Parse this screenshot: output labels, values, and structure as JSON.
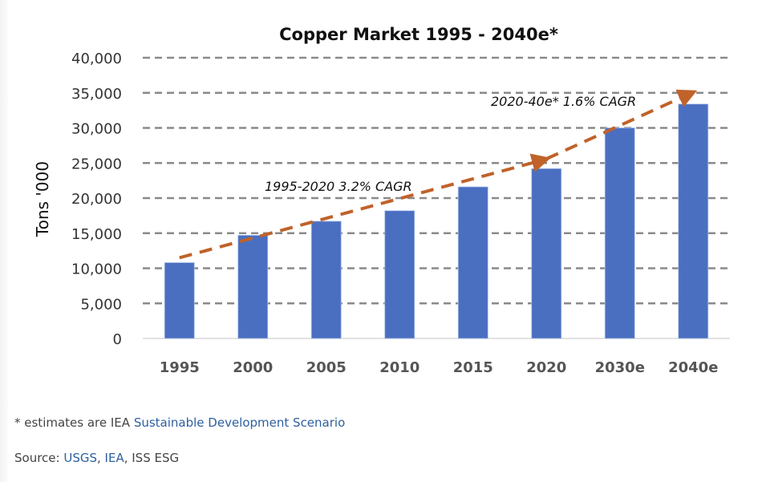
{
  "chart_data": {
    "type": "bar",
    "title": "Copper Market 1995 - 2040e*",
    "xlabel": "",
    "ylabel": "Tons '000",
    "ylim": [
      0,
      40000
    ],
    "yticks": [
      0,
      5000,
      10000,
      15000,
      20000,
      25000,
      30000,
      35000,
      40000
    ],
    "ytick_labels": [
      "0",
      "5,000",
      "10,000",
      "15,000",
      "20,000",
      "25,000",
      "30,000",
      "35,000",
      "40,000"
    ],
    "grid": true,
    "categories": [
      "1995",
      "2000",
      "2005",
      "2010",
      "2015",
      "2020",
      "2030e",
      "2040e"
    ],
    "values": [
      10800,
      14700,
      16700,
      18200,
      21600,
      24200,
      30000,
      33400
    ],
    "bar_color": "#4a6fc1",
    "trend_color": "#c0622a",
    "annotations": [
      {
        "text": "1995-2020  3.2% CAGR",
        "from": [
          "1995",
          11500
        ],
        "to": [
          "2020",
          25600
        ]
      },
      {
        "text": "2020-40e*  1.6% CAGR",
        "from": [
          "2020",
          25600
        ],
        "to": [
          "2040e",
          35000
        ]
      }
    ]
  },
  "footnote": {
    "prefix": "* estimates are IEA ",
    "link": "Sustainable Development Scenario"
  },
  "source": {
    "prefix": "Source: ",
    "links": [
      "USGS",
      "IEA"
    ],
    "suffix": ", ISS ESG"
  },
  "colors": {
    "link": "#2e5fa0"
  }
}
